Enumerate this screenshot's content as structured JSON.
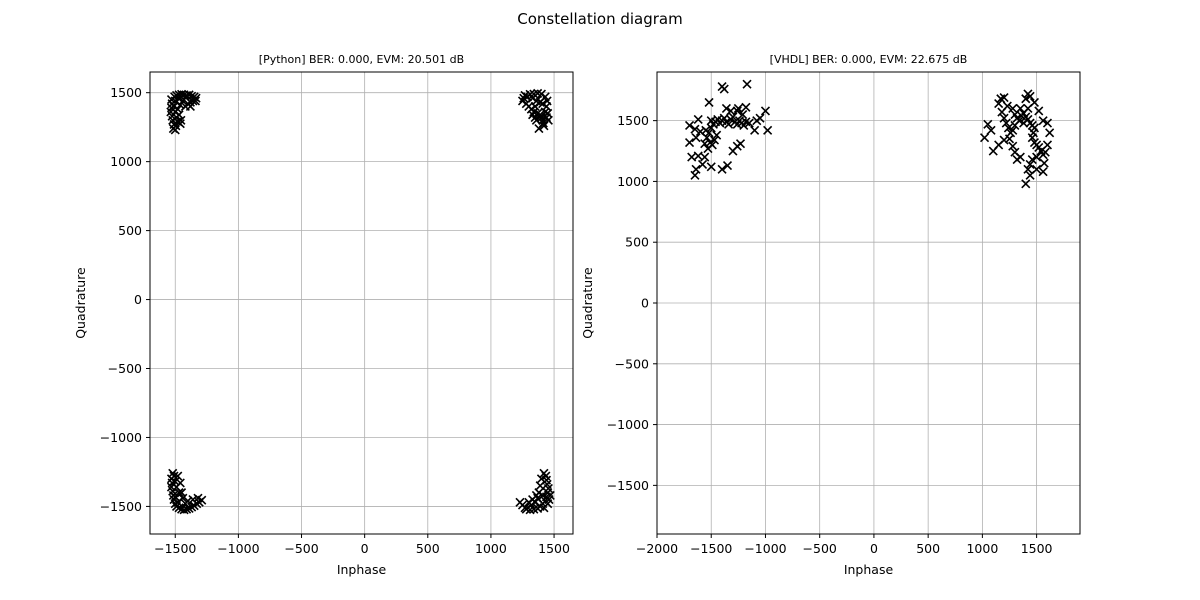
{
  "figure": {
    "suptitle": "Constellation diagram"
  },
  "chart_data": [
    {
      "type": "scatter",
      "title": "[Python] BER: 0.000, EVM: 20.501 dB",
      "xlabel": "Inphase",
      "ylabel": "Quadrature",
      "xlim": [
        -1700,
        1650
      ],
      "ylim": [
        -1700,
        1650
      ],
      "xticks": [
        -1500,
        -1000,
        -500,
        0,
        500,
        1000,
        1500
      ],
      "yticks": [
        -1500,
        -1000,
        -500,
        0,
        500,
        1000,
        1500
      ],
      "xtick_labels": [
        "−1500",
        "−1000",
        "−500",
        "0",
        "500",
        "1000",
        "1500"
      ],
      "ytick_labels": [
        "−1500",
        "−1000",
        "−500",
        "0",
        "500",
        "1000",
        "1500"
      ],
      "grid": true,
      "marker": "x",
      "color": "#000000",
      "points": [
        [
          -1530,
          1450
        ],
        [
          -1525,
          1420
        ],
        [
          -1530,
          1390
        ],
        [
          -1535,
          1360
        ],
        [
          -1525,
          1330
        ],
        [
          -1520,
          1300
        ],
        [
          -1510,
          1270
        ],
        [
          -1515,
          1240
        ],
        [
          -1495,
          1260
        ],
        [
          -1500,
          1230
        ],
        [
          -1505,
          1470
        ],
        [
          -1490,
          1480
        ],
        [
          -1470,
          1485
        ],
        [
          -1450,
          1488
        ],
        [
          -1430,
          1485
        ],
        [
          -1410,
          1480
        ],
        [
          -1390,
          1485
        ],
        [
          -1370,
          1475
        ],
        [
          -1350,
          1470
        ],
        [
          -1335,
          1460
        ],
        [
          -1340,
          1440
        ],
        [
          -1360,
          1440
        ],
        [
          -1380,
          1430
        ],
        [
          -1400,
          1420
        ],
        [
          -1420,
          1400
        ],
        [
          -1440,
          1440
        ],
        [
          -1470,
          1455
        ],
        [
          -1500,
          1440
        ],
        [
          -1510,
          1400
        ],
        [
          -1500,
          1360
        ],
        [
          -1490,
          1320
        ],
        [
          -1480,
          1290
        ],
        [
          -1460,
          1275
        ],
        [
          -1455,
          1300
        ],
        [
          -1470,
          1340
        ],
        [
          -1480,
          1380
        ],
        [
          -1460,
          1410
        ],
        [
          -1380,
          1400
        ],
        [
          1270,
          1480
        ],
        [
          1260,
          1460
        ],
        [
          1250,
          1440
        ],
        [
          1280,
          1420
        ],
        [
          1300,
          1400
        ],
        [
          1320,
          1380
        ],
        [
          1340,
          1360
        ],
        [
          1370,
          1350
        ],
        [
          1390,
          1340
        ],
        [
          1400,
          1320
        ],
        [
          1410,
          1300
        ],
        [
          1415,
          1280
        ],
        [
          1420,
          1260
        ],
        [
          1380,
          1240
        ],
        [
          1360,
          1300
        ],
        [
          1350,
          1320
        ],
        [
          1330,
          1340
        ],
        [
          1440,
          1320
        ],
        [
          1430,
          1360
        ],
        [
          1440,
          1400
        ],
        [
          1445,
          1440
        ],
        [
          1450,
          1350
        ],
        [
          1455,
          1300
        ],
        [
          1430,
          1470
        ],
        [
          1400,
          1490
        ],
        [
          1370,
          1495
        ],
        [
          1340,
          1490
        ],
        [
          1310,
          1488
        ],
        [
          1290,
          1470
        ],
        [
          1330,
          1460
        ],
        [
          1360,
          1440
        ],
        [
          1390,
          1430
        ],
        [
          1410,
          1420
        ],
        [
          1350,
          1400
        ],
        [
          -1530,
          -1300
        ],
        [
          -1525,
          -1330
        ],
        [
          -1530,
          -1360
        ],
        [
          -1520,
          -1390
        ],
        [
          -1515,
          -1420
        ],
        [
          -1510,
          -1450
        ],
        [
          -1500,
          -1480
        ],
        [
          -1490,
          -1500
        ],
        [
          -1470,
          -1510
        ],
        [
          -1450,
          -1520
        ],
        [
          -1430,
          -1525
        ],
        [
          -1410,
          -1520
        ],
        [
          -1390,
          -1515
        ],
        [
          -1370,
          -1505
        ],
        [
          -1350,
          -1495
        ],
        [
          -1330,
          -1480
        ],
        [
          -1310,
          -1470
        ],
        [
          -1290,
          -1455
        ],
        [
          -1320,
          -1440
        ],
        [
          -1360,
          -1450
        ],
        [
          -1400,
          -1460
        ],
        [
          -1440,
          -1440
        ],
        [
          -1470,
          -1400
        ],
        [
          -1490,
          -1360
        ],
        [
          -1500,
          -1320
        ],
        [
          -1510,
          -1280
        ],
        [
          -1520,
          -1260
        ],
        [
          -1480,
          -1280
        ],
        [
          -1460,
          -1330
        ],
        [
          -1450,
          -1400
        ],
        [
          -1420,
          -1480
        ],
        [
          -1480,
          -1470
        ],
        [
          -1500,
          -1430
        ],
        [
          1270,
          -1510
        ],
        [
          1250,
          -1490
        ],
        [
          1230,
          -1470
        ],
        [
          1280,
          -1520
        ],
        [
          1310,
          -1525
        ],
        [
          1340,
          -1520
        ],
        [
          1370,
          -1515
        ],
        [
          1390,
          -1500
        ],
        [
          1410,
          -1480
        ],
        [
          1430,
          -1460
        ],
        [
          1440,
          -1430
        ],
        [
          1450,
          -1400
        ],
        [
          1455,
          -1370
        ],
        [
          1445,
          -1340
        ],
        [
          1440,
          -1310
        ],
        [
          1435,
          -1280
        ],
        [
          1420,
          -1260
        ],
        [
          1400,
          -1300
        ],
        [
          1390,
          -1350
        ],
        [
          1380,
          -1400
        ],
        [
          1370,
          -1440
        ],
        [
          1350,
          -1470
        ],
        [
          1320,
          -1490
        ],
        [
          1300,
          -1470
        ],
        [
          1330,
          -1450
        ],
        [
          1360,
          -1420
        ],
        [
          1410,
          -1420
        ],
        [
          1460,
          -1450
        ],
        [
          1470,
          -1420
        ],
        [
          1450,
          -1480
        ],
        [
          1420,
          -1510
        ]
      ]
    },
    {
      "type": "scatter",
      "title": "[VHDL] BER: 0.000, EVM: 22.675 dB",
      "xlabel": "Inphase",
      "ylabel": "Quadrature",
      "xlim": [
        -2000,
        1900
      ],
      "ylim": [
        -1900,
        1900
      ],
      "xticks": [
        -2000,
        -1500,
        -1000,
        -500,
        0,
        500,
        1000,
        1500
      ],
      "yticks": [
        -1500,
        -1000,
        -500,
        0,
        500,
        1000,
        1500
      ],
      "xtick_labels": [
        "−2000",
        "−1500",
        "−1000",
        "−500",
        "0",
        "500",
        "1000",
        "1500"
      ],
      "ytick_labels": [
        "−1500",
        "−1000",
        "−500",
        "0",
        "500",
        "1000",
        "1500"
      ],
      "grid": true,
      "marker": "x",
      "color": "#000000",
      "points": [
        [
          -1500,
          1500
        ],
        [
          -1480,
          1470
        ],
        [
          -1460,
          1490
        ],
        [
          -1440,
          1510
        ],
        [
          -1420,
          1480
        ],
        [
          -1400,
          1500
        ],
        [
          -1380,
          1520
        ],
        [
          -1360,
          1490
        ],
        [
          -1340,
          1470
        ],
        [
          -1320,
          1510
        ],
        [
          -1300,
          1530
        ],
        [
          -1280,
          1490
        ],
        [
          -1260,
          1470
        ],
        [
          -1240,
          1500
        ],
        [
          -1220,
          1480
        ],
        [
          -1200,
          1460
        ],
        [
          -1180,
          1490
        ],
        [
          -1500,
          1440
        ],
        [
          -1520,
          1400
        ],
        [
          -1540,
          1360
        ],
        [
          -1510,
          1320
        ],
        [
          -1490,
          1300
        ],
        [
          -1470,
          1340
        ],
        [
          -1450,
          1380
        ],
        [
          -1530,
          1270
        ],
        [
          -1560,
          1310
        ],
        [
          -1550,
          1420
        ],
        [
          -1560,
          1200
        ],
        [
          -1600,
          1410
        ],
        [
          -1640,
          1360
        ],
        [
          -1650,
          1430
        ],
        [
          -1700,
          1320
        ],
        [
          -1620,
          1210
        ],
        [
          -1680,
          1200
        ],
        [
          -1640,
          1100
        ],
        [
          -1580,
          1140
        ],
        [
          -1650,
          1050
        ],
        [
          -1400,
          1100
        ],
        [
          -1500,
          1120
        ],
        [
          -1350,
          1130
        ],
        [
          -1300,
          1250
        ],
        [
          -1260,
          1290
        ],
        [
          -1230,
          1310
        ],
        [
          -1150,
          1480
        ],
        [
          -1100,
          1420
        ],
        [
          -1080,
          1500
        ],
        [
          -1050,
          1520
        ],
        [
          -1000,
          1580
        ],
        [
          -980,
          1420
        ],
        [
          -1180,
          1610
        ],
        [
          -1260,
          1580
        ],
        [
          -1320,
          1580
        ],
        [
          -1360,
          1600
        ],
        [
          -1400,
          1780
        ],
        [
          -1380,
          1760
        ],
        [
          -1170,
          1800
        ],
        [
          -1520,
          1650
        ],
        [
          -1620,
          1510
        ],
        [
          -1700,
          1460
        ],
        [
          -1250,
          1600
        ],
        [
          -1210,
          1550
        ],
        [
          1300,
          1550
        ],
        [
          1320,
          1520
        ],
        [
          1340,
          1500
        ],
        [
          1360,
          1540
        ],
        [
          1380,
          1560
        ],
        [
          1400,
          1530
        ],
        [
          1420,
          1510
        ],
        [
          1440,
          1480
        ],
        [
          1460,
          1460
        ],
        [
          1480,
          1440
        ],
        [
          1470,
          1400
        ],
        [
          1460,
          1360
        ],
        [
          1480,
          1320
        ],
        [
          1500,
          1300
        ],
        [
          1520,
          1280
        ],
        [
          1540,
          1250
        ],
        [
          1560,
          1220
        ],
        [
          1500,
          1200
        ],
        [
          1460,
          1180
        ],
        [
          1440,
          1140
        ],
        [
          1420,
          1100
        ],
        [
          1300,
          1460
        ],
        [
          1280,
          1420
        ],
        [
          1260,
          1400
        ],
        [
          1240,
          1440
        ],
        [
          1220,
          1480
        ],
        [
          1200,
          1520
        ],
        [
          1180,
          1570
        ],
        [
          1150,
          1640
        ],
        [
          1170,
          1680
        ],
        [
          1200,
          1690
        ],
        [
          1230,
          1620
        ],
        [
          1280,
          1600
        ],
        [
          1350,
          1600
        ],
        [
          1400,
          1680
        ],
        [
          1420,
          1720
        ],
        [
          1440,
          1700
        ],
        [
          1480,
          1650
        ],
        [
          1520,
          1580
        ],
        [
          1560,
          1500
        ],
        [
          1600,
          1480
        ],
        [
          1620,
          1400
        ],
        [
          1600,
          1300
        ],
        [
          1580,
          1240
        ],
        [
          1570,
          1150
        ],
        [
          1560,
          1080
        ],
        [
          1500,
          1100
        ],
        [
          1440,
          1050
        ],
        [
          1400,
          980
        ],
        [
          1350,
          1200
        ],
        [
          1320,
          1180
        ],
        [
          1300,
          1240
        ],
        [
          1280,
          1290
        ],
        [
          1250,
          1350
        ],
        [
          1200,
          1340
        ],
        [
          1150,
          1300
        ],
        [
          1100,
          1250
        ],
        [
          1080,
          1420
        ],
        [
          1050,
          1470
        ],
        [
          1020,
          1360
        ],
        [
          1380,
          1480
        ],
        [
          1420,
          1600
        ]
      ]
    }
  ]
}
